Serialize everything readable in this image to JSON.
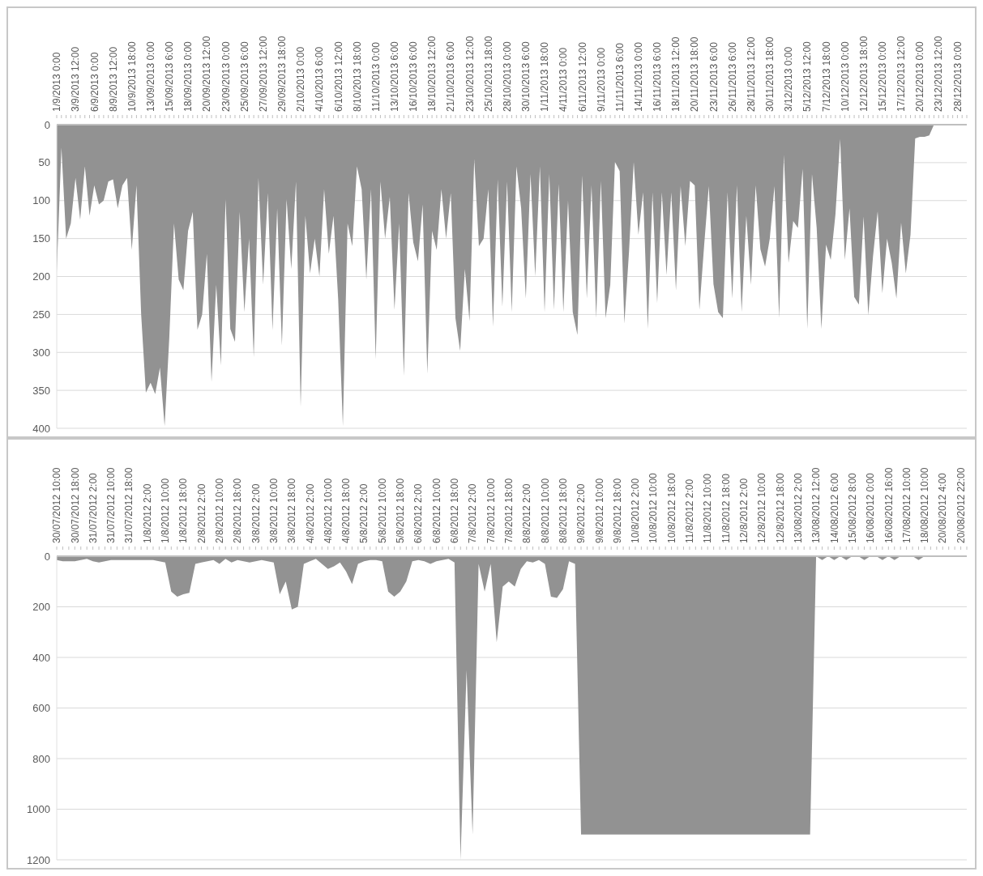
{
  "chart_data": [
    {
      "type": "area",
      "color": "#929292",
      "categories": [
        "1/9/2013 0:00",
        null,
        null,
        null,
        "3/9/2013 12:00",
        null,
        null,
        null,
        "6/9/2013 0:00",
        null,
        null,
        null,
        "8/9/2013 12:00",
        null,
        null,
        null,
        "10/9/2013 18:00",
        null,
        null,
        null,
        "13/09/2013 0:00",
        null,
        null,
        null,
        "15/09/2013 6:00",
        null,
        null,
        null,
        "18/09/2013 0:00",
        null,
        null,
        null,
        "20/09/2013 12:00",
        null,
        null,
        null,
        "23/09/2013 0:00",
        null,
        null,
        null,
        "25/09/2013 6:00",
        null,
        null,
        null,
        "27/09/2013 12:00",
        null,
        null,
        null,
        "29/09/2013 18:00",
        null,
        null,
        null,
        "2/10/2013 0:00",
        null,
        null,
        null,
        "4/10/2013 6:00",
        null,
        null,
        null,
        "6/10/2013 12:00",
        null,
        null,
        null,
        "8/10/2013 18:00",
        null,
        null,
        null,
        "11/10/2013 0:00",
        null,
        null,
        null,
        "13/10/2013 6:00",
        null,
        null,
        null,
        "16/10/2013 6:00",
        null,
        null,
        null,
        "18/10/2013 12:00",
        null,
        null,
        null,
        "21/10/2013 6:00",
        null,
        null,
        null,
        "23/10/2013 12:00",
        null,
        null,
        null,
        "25/10/2013 18:00",
        null,
        null,
        null,
        "28/10/2013 0:00",
        null,
        null,
        null,
        "30/10/2013 6:00",
        null,
        null,
        null,
        "1/11/2013 18:00",
        null,
        null,
        null,
        "4/11/2013 0:00",
        null,
        null,
        null,
        "6/11/2013 12:00",
        null,
        null,
        null,
        "9/11/2013 0:00",
        null,
        null,
        null,
        "11/11/2013 6:00",
        null,
        null,
        null,
        "14/11/2013 0:00",
        null,
        null,
        null,
        "16/11/2013 6:00",
        null,
        null,
        null,
        "18/11/2013 12:00",
        null,
        null,
        null,
        "20/11/2013 18:00",
        null,
        null,
        null,
        "23/11/2013 6:00",
        null,
        null,
        null,
        "26/11/2013 6:00",
        null,
        null,
        null,
        "28/11/2013 12:00",
        null,
        null,
        null,
        "30/11/2013 18:00",
        null,
        null,
        null,
        "3/12/2013 0:00",
        null,
        null,
        null,
        "5/12/2013 12:00",
        null,
        null,
        null,
        "7/12/2013 18:00",
        null,
        null,
        null,
        "10/12/2013 0:00",
        null,
        null,
        null,
        "12/12/2013 18:00",
        null,
        null,
        null,
        "15/12/2013 0:00",
        null,
        null,
        null,
        "17/12/2013 12:00",
        null,
        null,
        null,
        "20/12/2013 0:00",
        null,
        null,
        null,
        "23/12/2013 12:00",
        null,
        null,
        null,
        "28/12/2013 0:00",
        null,
        null
      ],
      "values": [
        195,
        30,
        150,
        130,
        70,
        125,
        55,
        120,
        80,
        105,
        100,
        75,
        72,
        110,
        80,
        70,
        165,
        80,
        250,
        353,
        340,
        355,
        320,
        397,
        280,
        130,
        204,
        218,
        140,
        115,
        270,
        250,
        170,
        339,
        211,
        317,
        98,
        269,
        286,
        115,
        247,
        150,
        306,
        70,
        211,
        90,
        271,
        110,
        291,
        98,
        190,
        75,
        372,
        120,
        196,
        150,
        200,
        85,
        170,
        120,
        230,
        397,
        130,
        160,
        55,
        85,
        204,
        85,
        309,
        75,
        150,
        95,
        244,
        130,
        331,
        90,
        155,
        180,
        105,
        328,
        140,
        165,
        85,
        150,
        90,
        255,
        298,
        190,
        259,
        45,
        160,
        150,
        85,
        266,
        72,
        240,
        75,
        247,
        55,
        110,
        229,
        65,
        200,
        55,
        247,
        65,
        244,
        78,
        247,
        100,
        247,
        277,
        67,
        229,
        80,
        255,
        74,
        255,
        211,
        49,
        61,
        262,
        167,
        49,
        145,
        89,
        269,
        89,
        235,
        89,
        198,
        89,
        218,
        81,
        160,
        74,
        80,
        244,
        160,
        81,
        210,
        247,
        255,
        89,
        229,
        80,
        247,
        120,
        211,
        80,
        164,
        187,
        150,
        81,
        255,
        40,
        182,
        127,
        136,
        58,
        269,
        65,
        136,
        269,
        158,
        178,
        118,
        19,
        178,
        110,
        227,
        237,
        121,
        251,
        174,
        114,
        222,
        150,
        182,
        229,
        129,
        196,
        145,
        18,
        16,
        16,
        14,
        0,
        0,
        0,
        0,
        0,
        0,
        0,
        0
      ],
      "ylim": [
        400,
        0
      ],
      "yticks": [
        0,
        50,
        100,
        150,
        200,
        250,
        300,
        350,
        400
      ],
      "grid": "y"
    },
    {
      "type": "area",
      "color": "#929292",
      "categories": [
        "30/07/2012 10:00",
        null,
        null,
        "30/07/2012 18:00",
        null,
        null,
        "31/07/2012 2:00",
        null,
        null,
        "31/07/2012 10:00",
        null,
        null,
        "31/07/2012 18:00",
        null,
        null,
        "1/8/2012 2:00",
        null,
        null,
        "1/8/2012 10:00",
        null,
        null,
        "1/8/2012 18:00",
        null,
        null,
        "2/8/2012 2:00",
        null,
        null,
        "2/8/2012 10:00",
        null,
        null,
        "2/8/2012 18:00",
        null,
        null,
        "3/8/2012 2:00",
        null,
        null,
        "3/8/2012 10:00",
        null,
        null,
        "3/8/2012 18:00",
        null,
        null,
        "4/8/2012 2:00",
        null,
        null,
        "4/8/2012 10:00",
        null,
        null,
        "4/8/2012 18:00",
        null,
        null,
        "5/8/2012 2:00",
        null,
        null,
        "5/8/2012 10:00",
        null,
        null,
        "5/8/2012 18:00",
        null,
        null,
        "6/8/2012 2:00",
        null,
        null,
        "6/8/2012 10:00",
        null,
        null,
        "6/8/2012 18:00",
        null,
        null,
        "7/8/2012 2:00",
        null,
        null,
        "7/8/2012 10:00",
        null,
        null,
        "7/8/2012 18:00",
        null,
        null,
        "8/8/2012 2:00",
        null,
        null,
        "8/8/2012 10:00",
        null,
        null,
        "8/8/2012 18:00",
        null,
        null,
        "9/8/2012 2:00",
        null,
        null,
        "9/8/2012 10:00",
        null,
        null,
        "9/8/2012 18:00",
        null,
        null,
        "10/8/2012 2:00",
        null,
        null,
        "10/8/2012 10:00",
        null,
        null,
        "10/8/2012 18:00",
        null,
        null,
        "11/8/2012 2:00",
        null,
        null,
        "11/8/2012 10:00",
        null,
        null,
        "11/8/2012 18:00",
        null,
        null,
        "12/8/2012 2:00",
        null,
        null,
        "12/8/2012 10:00",
        null,
        null,
        "12/8/2012 18:00",
        null,
        null,
        "13/08/2012 2:00",
        null,
        null,
        "13/08/2012 12:00",
        null,
        null,
        "14/08/2012 6:00",
        null,
        null,
        "15/08/2012 8:00",
        null,
        null,
        "16/08/2012 0:00",
        null,
        null,
        "16/08/2012 16:00",
        null,
        null,
        "17/08/2012 10:00",
        null,
        null,
        "18/08/2012 10:00",
        null,
        null,
        "20/08/2012 4:00",
        null,
        null,
        "20/08/2012 22:00",
        null
      ],
      "values": [
        15,
        20,
        20,
        20,
        15,
        10,
        20,
        25,
        20,
        15,
        15,
        15,
        15,
        15,
        15,
        15,
        15,
        20,
        25,
        140,
        160,
        150,
        145,
        30,
        25,
        20,
        15,
        30,
        10,
        25,
        15,
        20,
        25,
        20,
        15,
        20,
        25,
        150,
        100,
        210,
        200,
        30,
        20,
        10,
        30,
        50,
        40,
        25,
        60,
        110,
        30,
        20,
        15,
        15,
        20,
        140,
        160,
        140,
        100,
        20,
        15,
        20,
        30,
        20,
        15,
        10,
        25,
        1200,
        450,
        1100,
        30,
        140,
        30,
        340,
        120,
        100,
        120,
        50,
        20,
        25,
        15,
        30,
        160,
        165,
        130,
        20,
        30,
        1100,
        1100,
        1100,
        1100,
        1100,
        1100,
        1100,
        1100,
        1100,
        1100,
        1100,
        1100,
        1100,
        1100,
        1100,
        1100,
        1100,
        1100,
        1100,
        1100,
        1100,
        1100,
        1100,
        1100,
        1100,
        1100,
        1100,
        1100,
        1100,
        1100,
        1100,
        1100,
        1100,
        1100,
        1100,
        1100,
        1100,
        1100,
        1100,
        0,
        15,
        0,
        15,
        0,
        15,
        0,
        0,
        15,
        0,
        0,
        15,
        0,
        15,
        0,
        0,
        0,
        15,
        0,
        0,
        0,
        0,
        0,
        0,
        0,
        0
      ],
      "ylim": [
        1200,
        0
      ],
      "yticks": [
        0,
        200,
        400,
        600,
        800,
        1000,
        1200
      ],
      "grid": "y"
    }
  ]
}
